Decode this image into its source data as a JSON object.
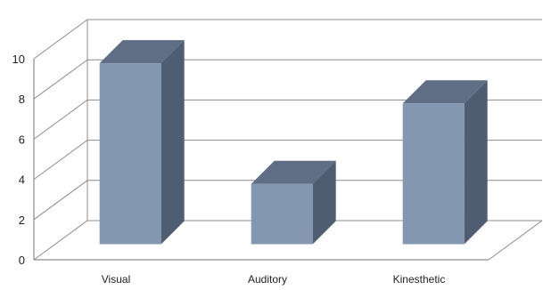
{
  "chart_data": {
    "type": "bar",
    "title": "",
    "xlabel": "",
    "ylabel": "",
    "categories": [
      "Visual",
      "Auditory",
      "Kinesthetic"
    ],
    "values": [
      9,
      3,
      7
    ],
    "ylim": [
      0,
      10
    ],
    "yticks": [
      "0",
      "2",
      "4",
      "6",
      "8",
      "10"
    ],
    "grid": true,
    "legend": "none",
    "style": "3d-column",
    "colors": {
      "bar_front": "#8497b0",
      "bar_side": "#4f5d72",
      "bar_top": "#5f6e85",
      "grid": "#8c8c8c"
    }
  }
}
